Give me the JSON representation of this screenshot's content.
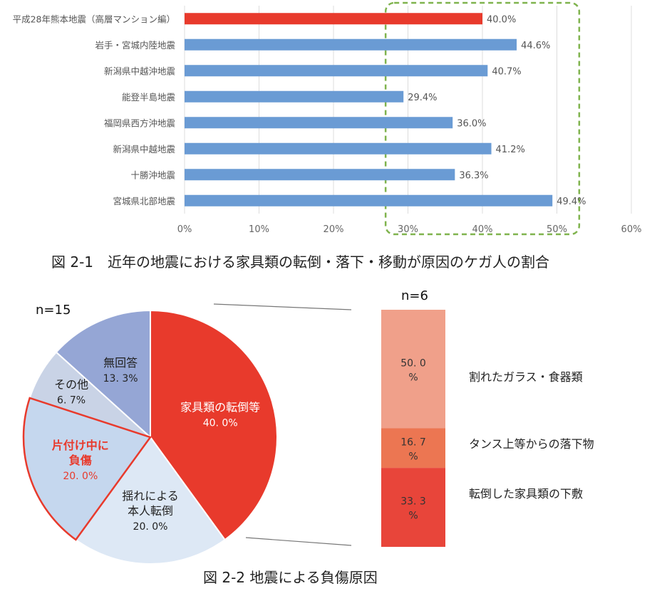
{
  "chart_data": [
    {
      "type": "bar",
      "orientation": "horizontal",
      "categories": [
        "平成28年熊本地震（高層マンション編）",
        "岩手・宮城内陸地震",
        "新潟県中越沖地震",
        "能登半島地震",
        "福岡県西方沖地震",
        "新潟県中越地震",
        "十勝沖地震",
        "宮城県北部地震"
      ],
      "values": [
        40.0,
        44.6,
        40.7,
        29.4,
        36.0,
        41.2,
        36.3,
        49.4
      ],
      "value_labels": [
        "40.0%",
        "44.6%",
        "40.7%",
        "29.4%",
        "36.0%",
        "41.2%",
        "36.3%",
        "49.4%"
      ],
      "bar_colors": [
        "#e83a2c",
        "#6a9bd4",
        "#6a9bd4",
        "#6a9bd4",
        "#6a9bd4",
        "#6a9bd4",
        "#6a9bd4",
        "#6a9bd4"
      ],
      "xticks": [
        "0%",
        "10%",
        "20%",
        "30%",
        "40%",
        "50%",
        "60%"
      ],
      "xlim": [
        0,
        60
      ],
      "highlight_range": [
        27,
        53
      ],
      "grid": true,
      "caption": "図 2-1　近年の地震における家具類の転倒・落下・移動が原因のケガ人の割合"
    },
    {
      "type": "pie",
      "n_label": "n=15",
      "slices": [
        {
          "label": "家具類の転倒等",
          "value": 40.0,
          "value_label": "40. 0%",
          "color": "#e83a2c",
          "text_color": "#ffffff"
        },
        {
          "label": "揺れによる本人転倒",
          "label_lines": [
            "揺れによる",
            "本人転倒"
          ],
          "value": 20.0,
          "value_label": "20. 0%",
          "color": "#dde8f5",
          "text_color": "#222222"
        },
        {
          "label": "片付け中に負傷",
          "label_lines": [
            "片付け中に",
            "負傷"
          ],
          "value": 20.0,
          "value_label": "20. 0%",
          "color": "#c5d7ee",
          "text_color": "#e83a2c",
          "outlined": true
        },
        {
          "label": "その他",
          "value": 6.7,
          "value_label": "6. 7%",
          "color": "#c9d3e6",
          "text_color": "#222222"
        },
        {
          "label": "無回答",
          "value": 13.3,
          "value_label": "13. 3%",
          "color": "#95a6d5",
          "text_color": "#222222"
        }
      ]
    },
    {
      "type": "bar",
      "orientation": "stacked-vertical",
      "n_label": "n=6",
      "segments": [
        {
          "label": "割れたガラス・食器類",
          "value": 50.0,
          "value_lines": [
            "50. 0",
            "%"
          ],
          "color": "#f0a08a"
        },
        {
          "label": "タンス上等からの落下物",
          "value": 16.7,
          "value_lines": [
            "16. 7",
            "%"
          ],
          "color": "#ec7652"
        },
        {
          "label": "転倒した家具類の下敷",
          "value": 33.3,
          "value_lines": [
            "33. 3",
            "%"
          ],
          "color": "#e8453a"
        }
      ],
      "caption": "図 2-2 地震による負傷原因"
    }
  ]
}
